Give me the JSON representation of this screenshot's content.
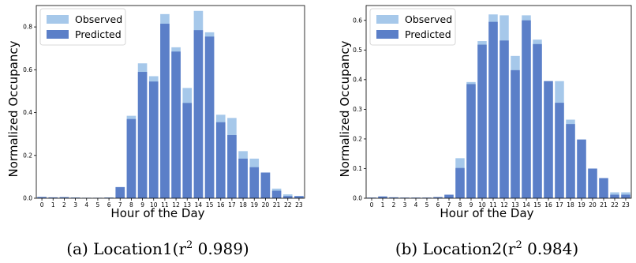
{
  "colors": {
    "observed": "#a6c8ea",
    "predicted": "#5b7fc8"
  },
  "chart_data": [
    {
      "type": "bar",
      "caption_prefix": "(a) Location1(r",
      "caption_exp": "2",
      "caption_value": " 0.989)",
      "xlabel": "Hour of the Day",
      "ylabel": "Normalized Occupancy",
      "ylim": [
        0,
        0.9
      ],
      "yticks": [
        "0.0",
        "0.2",
        "0.4",
        "0.6",
        "0.8"
      ],
      "ytick_values": [
        0,
        0.2,
        0.4,
        0.6,
        0.8
      ],
      "categories": [
        "0",
        "1",
        "2",
        "3",
        "4",
        "5",
        "6",
        "7",
        "8",
        "9",
        "10",
        "11",
        "12",
        "13",
        "14",
        "15",
        "16",
        "17",
        "18",
        "19",
        "20",
        "21",
        "22",
        "23"
      ],
      "legend": {
        "position": "top-left",
        "entries": [
          "Observed",
          "Predicted"
        ]
      },
      "series": [
        {
          "name": "Observed",
          "values": [
            0.006,
            0.004,
            0.005,
            0.003,
            0.002,
            0.002,
            0.003,
            0.052,
            0.385,
            0.63,
            0.57,
            0.86,
            0.705,
            0.515,
            0.875,
            0.775,
            0.39,
            0.375,
            0.22,
            0.185,
            0.12,
            0.045,
            0.018,
            0.01
          ]
        },
        {
          "name": "Predicted",
          "values": [
            0.006,
            0.004,
            0.005,
            0.003,
            0.002,
            0.002,
            0.003,
            0.052,
            0.37,
            0.59,
            0.545,
            0.815,
            0.685,
            0.445,
            0.785,
            0.755,
            0.355,
            0.295,
            0.185,
            0.145,
            0.12,
            0.035,
            0.01,
            0.01
          ]
        }
      ]
    },
    {
      "type": "bar",
      "caption_prefix": "(b) Location2(r",
      "caption_exp": "2",
      "caption_value": " 0.984)",
      "xlabel": "Hour of the Day",
      "ylabel": "Normalized Occupancy",
      "ylim": [
        0,
        0.65
      ],
      "yticks": [
        "0.0",
        "0.1",
        "0.2",
        "0.3",
        "0.4",
        "0.5",
        "0.6"
      ],
      "ytick_values": [
        0,
        0.1,
        0.2,
        0.3,
        0.4,
        0.5,
        0.6
      ],
      "categories": [
        "0",
        "1",
        "2",
        "3",
        "4",
        "5",
        "6",
        "7",
        "8",
        "9",
        "10",
        "11",
        "12",
        "13",
        "14",
        "15",
        "16",
        "17",
        "18",
        "19",
        "20",
        "21",
        "22",
        "23"
      ],
      "legend": {
        "position": "top-left",
        "entries": [
          "Observed",
          "Predicted"
        ]
      },
      "series": [
        {
          "name": "Observed",
          "values": [
            0.002,
            0.006,
            0.003,
            0.002,
            0.002,
            0.002,
            0.004,
            0.012,
            0.135,
            0.392,
            0.53,
            0.62,
            0.617,
            0.48,
            0.617,
            0.535,
            0.395,
            0.395,
            0.265,
            0.198,
            0.1,
            0.068,
            0.02,
            0.02
          ]
        },
        {
          "name": "Predicted",
          "values": [
            0.002,
            0.006,
            0.003,
            0.002,
            0.002,
            0.002,
            0.004,
            0.012,
            0.102,
            0.385,
            0.518,
            0.595,
            0.532,
            0.432,
            0.6,
            0.52,
            0.395,
            0.322,
            0.25,
            0.198,
            0.1,
            0.068,
            0.012,
            0.012
          ]
        }
      ]
    }
  ]
}
